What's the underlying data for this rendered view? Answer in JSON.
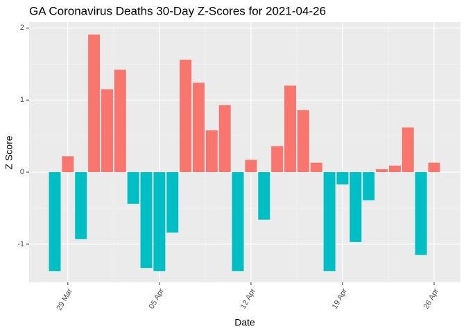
{
  "chart_data": {
    "type": "bar",
    "title": "GA Coronavirus Deaths 30-Day Z-Scores for 2021-04-26",
    "x_label": "Date",
    "y_label": "Z Score",
    "categories": [
      null,
      "29 Mar",
      null,
      null,
      null,
      null,
      null,
      null,
      "05 Apr",
      null,
      null,
      null,
      null,
      null,
      null,
      "12 Apr",
      null,
      null,
      null,
      null,
      null,
      null,
      "19 Apr",
      null,
      null,
      null,
      null,
      null,
      null,
      "26 Apr"
    ],
    "values": [
      -1.375,
      0.22,
      -0.93,
      1.91,
      1.15,
      1.42,
      -0.44,
      -1.33,
      -1.375,
      -0.84,
      1.56,
      1.24,
      0.58,
      0.93,
      -1.375,
      0.17,
      -0.66,
      0.36,
      1.2,
      0.86,
      0.13,
      -1.375,
      -0.17,
      -0.97,
      -0.39,
      0.04,
      0.09,
      0.62,
      -1.15,
      0.13
    ],
    "positive_color": "#F8766D",
    "negative_color": "#00BFC4",
    "ylim": [
      -1.53,
      2.08
    ],
    "yticks": [
      -1,
      0,
      1,
      2
    ],
    "grid": true
  }
}
